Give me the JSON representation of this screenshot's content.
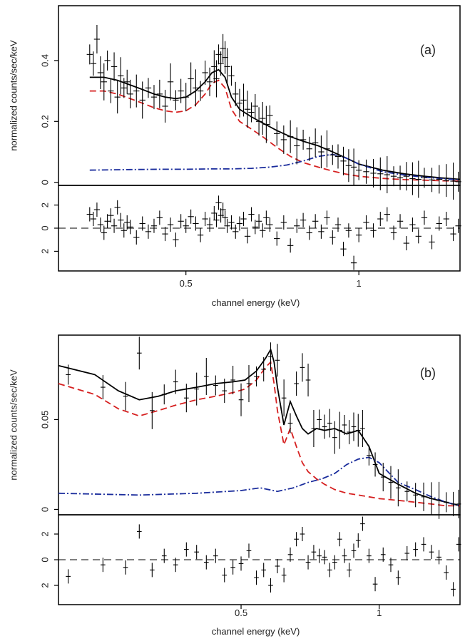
{
  "chart_data": [
    {
      "type": "line",
      "panel_label": "(a)",
      "xlabel": "channel energy (keV)",
      "ylabel": "normalized counts/sec/keV",
      "xlim": [
        0.3,
        1.5
      ],
      "x_scale": "log",
      "x_ticks": [
        0.5,
        1
      ],
      "x_tick_labels": [
        "0.5",
        "1"
      ],
      "ylim": [
        -0.01,
        0.58
      ],
      "y_ticks": [
        0,
        0.2,
        0.4
      ],
      "y_tick_labels": [
        "0",
        "0.2",
        "0.4"
      ],
      "residual_ylim": [
        -3.7,
        3.7
      ],
      "residual_ticks": [
        2,
        0,
        -2
      ],
      "residual_tick_labels": [
        "2",
        "0",
        "2"
      ],
      "series": [
        {
          "color": "#000000",
          "style": "solid",
          "x": [
            0.34,
            0.36,
            0.38,
            0.4,
            0.42,
            0.44,
            0.46,
            0.48,
            0.5,
            0.52,
            0.54,
            0.555,
            0.57,
            0.585,
            0.6,
            0.62,
            0.65,
            0.68,
            0.72,
            0.76,
            0.8,
            0.85,
            0.9,
            0.95,
            1.0,
            1.1,
            1.2,
            1.3,
            1.4,
            1.5
          ],
          "values": [
            0.345,
            0.345,
            0.335,
            0.32,
            0.305,
            0.29,
            0.28,
            0.275,
            0.28,
            0.3,
            0.33,
            0.36,
            0.37,
            0.345,
            0.28,
            0.24,
            0.215,
            0.195,
            0.17,
            0.15,
            0.135,
            0.12,
            0.1,
            0.08,
            0.06,
            0.04,
            0.028,
            0.02,
            0.014,
            0.01
          ]
        },
        {
          "color": "#d62020",
          "style": "dashed",
          "x": [
            0.34,
            0.36,
            0.38,
            0.4,
            0.42,
            0.44,
            0.46,
            0.48,
            0.5,
            0.52,
            0.54,
            0.555,
            0.57,
            0.585,
            0.6,
            0.62,
            0.65,
            0.68,
            0.72,
            0.76,
            0.8,
            0.85,
            0.9,
            0.95,
            1.0,
            1.1,
            1.2,
            1.3,
            1.4,
            1.5
          ],
          "values": [
            0.3,
            0.3,
            0.29,
            0.275,
            0.26,
            0.245,
            0.235,
            0.23,
            0.235,
            0.255,
            0.29,
            0.325,
            0.335,
            0.31,
            0.24,
            0.2,
            0.175,
            0.15,
            0.115,
            0.085,
            0.065,
            0.05,
            0.037,
            0.027,
            0.02,
            0.013,
            0.009,
            0.007,
            0.005,
            0.004
          ]
        },
        {
          "color": "#1a2c9c",
          "style": "dash-dot",
          "x": [
            0.34,
            0.4,
            0.45,
            0.5,
            0.55,
            0.6,
            0.65,
            0.7,
            0.75,
            0.8,
            0.85,
            0.9,
            0.95,
            1.0,
            1.1,
            1.2,
            1.3,
            1.4,
            1.5
          ],
          "values": [
            0.04,
            0.042,
            0.043,
            0.043,
            0.044,
            0.044,
            0.046,
            0.05,
            0.057,
            0.07,
            0.085,
            0.092,
            0.08,
            0.06,
            0.035,
            0.024,
            0.017,
            0.012,
            0.008
          ]
        }
      ],
      "data_points": {
        "x": [
          0.34,
          0.345,
          0.35,
          0.355,
          0.36,
          0.365,
          0.37,
          0.375,
          0.38,
          0.385,
          0.39,
          0.395,
          0.4,
          0.41,
          0.42,
          0.43,
          0.44,
          0.45,
          0.46,
          0.47,
          0.48,
          0.49,
          0.5,
          0.51,
          0.52,
          0.53,
          0.54,
          0.55,
          0.56,
          0.565,
          0.57,
          0.575,
          0.58,
          0.585,
          0.59,
          0.6,
          0.61,
          0.62,
          0.63,
          0.64,
          0.65,
          0.66,
          0.67,
          0.68,
          0.69,
          0.7,
          0.72,
          0.74,
          0.76,
          0.78,
          0.8,
          0.82,
          0.84,
          0.86,
          0.88,
          0.9,
          0.92,
          0.94,
          0.96,
          0.98,
          1.0,
          1.03,
          1.06,
          1.09,
          1.12,
          1.15,
          1.18,
          1.21,
          1.24,
          1.27,
          1.3,
          1.34,
          1.38,
          1.42,
          1.46,
          1.49
        ],
        "y": [
          0.42,
          0.39,
          0.47,
          0.36,
          0.33,
          0.4,
          0.3,
          0.38,
          0.28,
          0.35,
          0.31,
          0.33,
          0.29,
          0.3,
          0.27,
          0.31,
          0.28,
          0.29,
          0.25,
          0.33,
          0.27,
          0.3,
          0.28,
          0.34,
          0.31,
          0.3,
          0.36,
          0.33,
          0.38,
          0.34,
          0.42,
          0.39,
          0.44,
          0.41,
          0.38,
          0.35,
          0.29,
          0.26,
          0.27,
          0.24,
          0.23,
          0.25,
          0.2,
          0.21,
          0.19,
          0.22,
          0.16,
          0.14,
          0.15,
          0.12,
          0.14,
          0.11,
          0.13,
          0.1,
          0.11,
          0.09,
          0.085,
          0.07,
          0.055,
          0.05,
          0.04,
          0.035,
          0.03,
          0.028,
          0.025,
          0.02,
          0.015,
          0.02,
          0.012,
          0.01,
          0.015,
          0.008,
          0.01,
          0.006,
          0.004,
          0.002
        ],
        "residuals": [
          1.2,
          0.8,
          1.6,
          0.3,
          -0.4,
          0.6,
          1.1,
          0.2,
          1.8,
          0.7,
          -0.2,
          0.5,
          0.1,
          -0.8,
          0.4,
          -0.3,
          0.2,
          0.9,
          -0.5,
          0.3,
          -1.0,
          0.6,
          0.2,
          1.0,
          0.4,
          -0.6,
          0.8,
          0.3,
          1.3,
          0.7,
          2.2,
          1.1,
          1.6,
          0.9,
          0.2,
          0.5,
          -0.3,
          0.4,
          0.8,
          -0.7,
          1.2,
          0.1,
          0.6,
          -0.2,
          0.9,
          0.3,
          -0.9,
          0.5,
          -1.5,
          0.2,
          0.7,
          -0.4,
          0.6,
          -0.3,
          0.9,
          -0.8,
          0.3,
          -1.8,
          -0.2,
          -3.0,
          -0.6,
          0.5,
          -0.2,
          0.8,
          1.2,
          -0.4,
          0.6,
          -1.3,
          0.3,
          -0.7,
          0.9,
          -1.2,
          0.4,
          0.8,
          -0.5,
          0.2
        ]
      }
    },
    {
      "type": "line",
      "panel_label": "(b)",
      "xlabel": "channel energy (keV)",
      "ylabel": "normalized counts/sec/keV",
      "xlim": [
        0.2,
        1.5
      ],
      "x_scale": "log",
      "x_ticks": [
        0.5,
        1
      ],
      "x_tick_labels": [
        "0.5",
        "1"
      ],
      "ylim": [
        -0.003,
        0.097
      ],
      "y_ticks": [
        0,
        0.05
      ],
      "y_tick_labels": [
        "0",
        "0.05"
      ],
      "residual_ylim": [
        -3.5,
        3.5
      ],
      "residual_ticks": [
        2,
        0,
        -2
      ],
      "residual_tick_labels": [
        "2",
        "0",
        "2"
      ],
      "series": [
        {
          "color": "#000000",
          "style": "solid",
          "x": [
            0.2,
            0.24,
            0.27,
            0.3,
            0.33,
            0.36,
            0.4,
            0.44,
            0.48,
            0.51,
            0.54,
            0.565,
            0.58,
            0.59,
            0.6,
            0.62,
            0.64,
            0.66,
            0.68,
            0.7,
            0.73,
            0.76,
            0.8,
            0.85,
            0.9,
            0.95,
            1.0,
            1.1,
            1.2,
            1.3,
            1.4,
            1.5
          ],
          "values": [
            0.08,
            0.075,
            0.066,
            0.061,
            0.063,
            0.066,
            0.068,
            0.07,
            0.071,
            0.072,
            0.077,
            0.084,
            0.089,
            0.082,
            0.068,
            0.047,
            0.06,
            0.052,
            0.045,
            0.042,
            0.045,
            0.044,
            0.045,
            0.042,
            0.044,
            0.035,
            0.02,
            0.014,
            0.009,
            0.006,
            0.004,
            0.002
          ]
        },
        {
          "color": "#d62020",
          "style": "dashed",
          "x": [
            0.2,
            0.24,
            0.27,
            0.3,
            0.33,
            0.36,
            0.4,
            0.44,
            0.48,
            0.51,
            0.54,
            0.565,
            0.58,
            0.59,
            0.6,
            0.62,
            0.64,
            0.66,
            0.68,
            0.7,
            0.73,
            0.76,
            0.8,
            0.85,
            0.9,
            0.95,
            1.0,
            1.1,
            1.2,
            1.3,
            1.4,
            1.5
          ],
          "values": [
            0.07,
            0.064,
            0.056,
            0.052,
            0.055,
            0.058,
            0.061,
            0.063,
            0.065,
            0.067,
            0.072,
            0.079,
            0.082,
            0.07,
            0.055,
            0.036,
            0.045,
            0.035,
            0.026,
            0.021,
            0.017,
            0.014,
            0.011,
            0.009,
            0.008,
            0.007,
            0.006,
            0.005,
            0.004,
            0.003,
            0.002,
            0.002
          ]
        },
        {
          "color": "#1a2c9c",
          "style": "dash-dot",
          "x": [
            0.2,
            0.3,
            0.4,
            0.5,
            0.55,
            0.6,
            0.65,
            0.7,
            0.75,
            0.8,
            0.85,
            0.9,
            0.95,
            1.0,
            1.1,
            1.2,
            1.3,
            1.4,
            1.5
          ],
          "values": [
            0.009,
            0.008,
            0.009,
            0.0105,
            0.012,
            0.01,
            0.012,
            0.015,
            0.017,
            0.02,
            0.025,
            0.028,
            0.029,
            0.026,
            0.015,
            0.011,
            0.007,
            0.004,
            0.002
          ]
        }
      ],
      "data_points": {
        "x": [
          0.21,
          0.25,
          0.28,
          0.3,
          0.32,
          0.34,
          0.36,
          0.38,
          0.4,
          0.42,
          0.44,
          0.46,
          0.48,
          0.5,
          0.52,
          0.54,
          0.56,
          0.58,
          0.6,
          0.62,
          0.64,
          0.66,
          0.68,
          0.7,
          0.72,
          0.74,
          0.76,
          0.78,
          0.8,
          0.82,
          0.84,
          0.86,
          0.88,
          0.9,
          0.92,
          0.95,
          0.98,
          1.02,
          1.06,
          1.1,
          1.15,
          1.2,
          1.25,
          1.3,
          1.35,
          1.4,
          1.45,
          1.49
        ],
        "y": [
          0.075,
          0.068,
          0.063,
          0.087,
          0.055,
          0.064,
          0.071,
          0.062,
          0.067,
          0.074,
          0.069,
          0.066,
          0.072,
          0.061,
          0.07,
          0.074,
          0.078,
          0.085,
          0.083,
          0.062,
          0.048,
          0.07,
          0.079,
          0.072,
          0.045,
          0.05,
          0.046,
          0.048,
          0.04,
          0.044,
          0.047,
          0.043,
          0.046,
          0.044,
          0.045,
          0.03,
          0.025,
          0.018,
          0.015,
          0.012,
          0.01,
          0.008,
          0.007,
          0.006,
          0.005,
          0.004,
          0.003,
          0.003
        ],
        "residuals": [
          -1.3,
          -0.4,
          -0.6,
          2.2,
          -0.8,
          0.3,
          -0.4,
          0.8,
          0.6,
          -0.2,
          0.3,
          -1.2,
          -0.6,
          -0.3,
          0.7,
          -1.4,
          -0.8,
          -2.0,
          -0.5,
          -1.2,
          0.4,
          1.6,
          2.0,
          -0.2,
          0.6,
          0.3,
          0.2,
          -0.8,
          -0.2,
          1.6,
          0.3,
          -0.8,
          0.7,
          1.5,
          2.8,
          0.3,
          -1.9,
          0.4,
          -0.4,
          -1.4,
          0.5,
          0.8,
          1.2,
          0.6,
          0.2,
          -1.0,
          -2.3,
          1.2
        ]
      }
    }
  ]
}
